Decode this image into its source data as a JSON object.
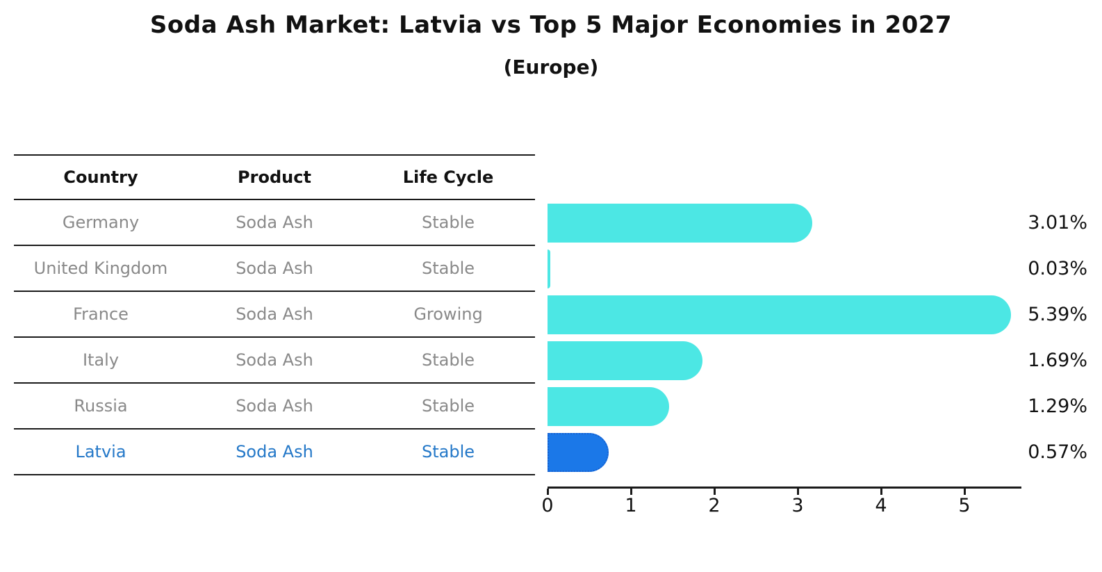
{
  "header": {
    "title": "Soda Ash Market: Latvia vs Top 5 Major Economies in 2027",
    "subtitle": "(Europe)"
  },
  "table": {
    "columns": [
      "Country",
      "Product",
      "Life Cycle"
    ],
    "rows": [
      {
        "country": "Germany",
        "product": "Soda Ash",
        "life_cycle": "Stable",
        "highlight": false
      },
      {
        "country": "United Kingdom",
        "product": "Soda Ash",
        "life_cycle": "Stable",
        "highlight": false
      },
      {
        "country": "France",
        "product": "Soda Ash",
        "life_cycle": "Growing",
        "highlight": false
      },
      {
        "country": "Italy",
        "product": "Soda Ash",
        "life_cycle": "Stable",
        "highlight": false
      },
      {
        "country": "Russia",
        "product": "Soda Ash",
        "life_cycle": "Stable",
        "highlight": false
      },
      {
        "country": "Latvia",
        "product": "Soda Ash",
        "life_cycle": "Stable",
        "highlight": true
      }
    ]
  },
  "chart_data": {
    "type": "bar",
    "orientation": "horizontal",
    "title": "Soda Ash Market: Latvia vs Top 5 Major Economies in 2027",
    "subtitle": "(Europe)",
    "categories": [
      "Germany",
      "United Kingdom",
      "France",
      "Italy",
      "Russia",
      "Latvia"
    ],
    "values": [
      3.01,
      0.03,
      5.39,
      1.69,
      1.29,
      0.57
    ],
    "value_labels": [
      "3.01%",
      "0.03%",
      "5.39%",
      "1.69%",
      "1.29%",
      "0.57%"
    ],
    "x_ticks": [
      0,
      1,
      2,
      3,
      4,
      5
    ],
    "xlim": [
      0,
      5.67
    ],
    "grid": false,
    "legend": "none",
    "highlight_index": 5,
    "colors": {
      "bar": "#4CE7E4",
      "highlight_bar": "#1B78E8",
      "highlight_border": "#1560D0",
      "highlight_text": "#2478C8",
      "table_text": "#898989",
      "axis": "#1A1A1A",
      "label_text": "#111111"
    }
  }
}
